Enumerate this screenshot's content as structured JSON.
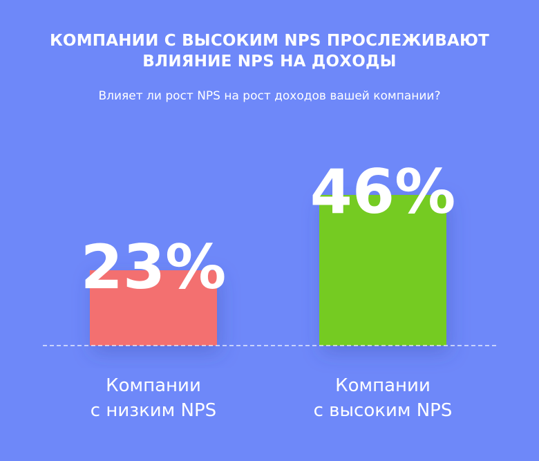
{
  "header": {
    "title_line1": "КОМПАНИИ С ВЫСОКИМ NPS ПРОСЛЕЖИВАЮТ",
    "title_line2": "ВЛИЯНИЕ NPS НА ДОХОДЫ",
    "subtitle": "Влияет ли рост NPS на рост доходов вашей компании?"
  },
  "chart_data": {
    "type": "bar",
    "title": "КОМПАНИИ С ВЫСОКИМ NPS ПРОСЛЕЖИВАЮТ ВЛИЯНИЕ NPS НА ДОХОДЫ",
    "subtitle": "Влияет ли рост NPS на рост доходов вашей компании?",
    "categories": [
      "Компании с низким NPS",
      "Компании с высоким NPS"
    ],
    "category_lines": [
      [
        "Компании",
        "с низким NPS"
      ],
      [
        "Компании",
        "с высоким NPS"
      ]
    ],
    "values": [
      23,
      46
    ],
    "value_labels": [
      "23%",
      "46%"
    ],
    "bar_colors": [
      "#f37070",
      "#74cb24"
    ],
    "ylim": [
      0,
      46
    ],
    "grid": false,
    "baseline_style": "dashed",
    "legend": "none",
    "xlabel": "",
    "ylabel": ""
  },
  "colors": {
    "background": "#6e88f9",
    "text": "#ffffff",
    "baseline": "#ffffff"
  }
}
